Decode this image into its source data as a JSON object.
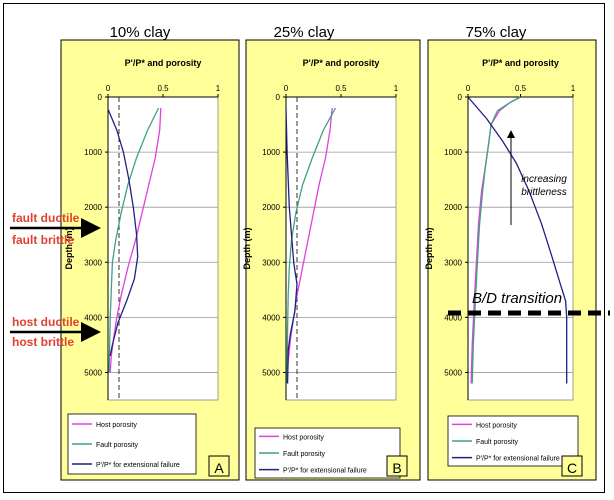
{
  "panel_titles": [
    "10% clay",
    "25% clay",
    "75% clay"
  ],
  "left_labels": {
    "fault_ductile": "fault ductile",
    "fault_brittle": "fault brittle",
    "host_ductile": "host ductile",
    "host_brittle": "host brittle"
  },
  "colors": {
    "panel_bg": "#ffff99",
    "host": "#e040e0",
    "fault": "#40a080",
    "ppstar": "#202080",
    "labels": "#e04030"
  },
  "chart_data": [
    {
      "type": "line",
      "panel_letter": "A",
      "title": "P'/P* and porosity",
      "ylabel": "Depth (m)",
      "xlim": [
        0,
        1
      ],
      "ylim": [
        0,
        5500
      ],
      "xticks": [
        0,
        0.5,
        1
      ],
      "xtick_labels": [
        "0",
        "0.5",
        "1"
      ],
      "yticks": [
        0,
        1000,
        2000,
        3000,
        4000,
        5000
      ],
      "ytick_labels": [
        "0",
        "1000",
        "2000",
        "3000",
        "4000",
        "5000"
      ],
      "x_axis_position": "top",
      "grid": true,
      "reference_line_x": 0.1,
      "series": [
        {
          "name": "Host porosity",
          "color_key": "host",
          "points": [
            [
              0.48,
              200
            ],
            [
              0.47,
              600
            ],
            [
              0.43,
              1100
            ],
            [
              0.37,
              1600
            ],
            [
              0.31,
              2100
            ],
            [
              0.25,
              2600
            ],
            [
              0.18,
              3100
            ],
            [
              0.12,
              3600
            ],
            [
              0.08,
              4000
            ],
            [
              0.05,
              4400
            ],
            [
              0.03,
              4700
            ],
            [
              0.02,
              5000
            ]
          ]
        },
        {
          "name": "Fault porosity",
          "color_key": "fault",
          "points": [
            [
              0.46,
              200
            ],
            [
              0.36,
              600
            ],
            [
              0.26,
              1100
            ],
            [
              0.18,
              1600
            ],
            [
              0.12,
              2100
            ],
            [
              0.07,
              2600
            ],
            [
              0.04,
              3000
            ],
            [
              0.03,
              3500
            ],
            [
              0.02,
              4000
            ],
            [
              0.015,
              4500
            ],
            [
              0.01,
              5000
            ]
          ]
        },
        {
          "name": "P'/P* for extensional failure",
          "color_key": "ppstar",
          "points": [
            [
              0.0,
              220
            ],
            [
              0.08,
              600
            ],
            [
              0.14,
              1000
            ],
            [
              0.19,
              1500
            ],
            [
              0.23,
              2000
            ],
            [
              0.26,
              2500
            ],
            [
              0.27,
              2900
            ],
            [
              0.24,
              3300
            ],
            [
              0.17,
              3700
            ],
            [
              0.09,
              4100
            ],
            [
              0.04,
              4500
            ],
            [
              0.02,
              4700
            ]
          ]
        }
      ],
      "legend_location": "bottom"
    },
    {
      "type": "line",
      "panel_letter": "B",
      "title": "P'/P* and porosity",
      "ylabel": "Depth (m)",
      "xlim": [
        0,
        1
      ],
      "ylim": [
        0,
        5500
      ],
      "xticks": [
        0,
        0.5,
        1
      ],
      "xtick_labels": [
        "0",
        "0.5",
        "1"
      ],
      "yticks": [
        0,
        1000,
        2000,
        3000,
        4000,
        5000
      ],
      "ytick_labels": [
        "0",
        "1000",
        "2000",
        "3000",
        "4000",
        "5000"
      ],
      "x_axis_position": "top",
      "grid": true,
      "reference_line_x": 0.1,
      "series": [
        {
          "name": "Host porosity",
          "color_key": "host",
          "points": [
            [
              0.42,
              200
            ],
            [
              0.4,
              600
            ],
            [
              0.36,
              1100
            ],
            [
              0.3,
              1600
            ],
            [
              0.25,
              2100
            ],
            [
              0.2,
              2600
            ],
            [
              0.15,
              3100
            ],
            [
              0.1,
              3600
            ],
            [
              0.07,
              4000
            ],
            [
              0.04,
              4400
            ],
            [
              0.02,
              4800
            ],
            [
              0.01,
              5200
            ]
          ]
        },
        {
          "name": "Fault porosity",
          "color_key": "fault",
          "points": [
            [
              0.45,
              200
            ],
            [
              0.34,
              600
            ],
            [
              0.24,
              1100
            ],
            [
              0.15,
              1600
            ],
            [
              0.09,
              2100
            ],
            [
              0.05,
              2600
            ],
            [
              0.03,
              3100
            ],
            [
              0.02,
              3600
            ],
            [
              0.015,
              4200
            ],
            [
              0.01,
              5200
            ]
          ]
        },
        {
          "name": "P'/P* for extensional failure",
          "color_key": "ppstar",
          "points": [
            [
              0.0,
              200
            ],
            [
              0.01,
              1000
            ],
            [
              0.03,
              2000
            ],
            [
              0.07,
              3000
            ],
            [
              0.1,
              3400
            ],
            [
              0.08,
              3900
            ],
            [
              0.04,
              4300
            ],
            [
              0.02,
              4600
            ],
            [
              0.015,
              5200
            ]
          ]
        }
      ],
      "legend_location": "bottom"
    },
    {
      "type": "line",
      "panel_letter": "C",
      "title": "P'/P* and porosity",
      "ylabel": "Depth (m)",
      "xlim": [
        0,
        1
      ],
      "ylim": [
        0,
        5500
      ],
      "xticks": [
        0,
        0.5,
        1
      ],
      "xtick_labels": [
        "0",
        "0.5",
        "1"
      ],
      "yticks": [
        0,
        1000,
        2000,
        3000,
        4000,
        5000
      ],
      "ytick_labels": [
        "0",
        "1000",
        "2000",
        "3000",
        "4000",
        "5000"
      ],
      "x_axis_position": "top",
      "grid": true,
      "series": [
        {
          "name": "Host porosity",
          "color_key": "host",
          "points": [
            [
              0.5,
              0
            ],
            [
              0.4,
              100
            ],
            [
              0.3,
              250
            ],
            [
              0.22,
              500
            ],
            [
              0.2,
              800
            ],
            [
              0.17,
              1200
            ],
            [
              0.13,
              1700
            ],
            [
              0.1,
              2300
            ],
            [
              0.08,
              3000
            ],
            [
              0.06,
              3700
            ],
            [
              0.04,
              4500
            ],
            [
              0.03,
              5200
            ]
          ]
        },
        {
          "name": "Fault porosity",
          "color_key": "fault",
          "points": [
            [
              0.5,
              0
            ],
            [
              0.4,
              100
            ],
            [
              0.28,
              250
            ],
            [
              0.22,
              500
            ],
            [
              0.2,
              800
            ],
            [
              0.17,
              1200
            ],
            [
              0.14,
              1700
            ],
            [
              0.11,
              2300
            ],
            [
              0.09,
              3000
            ],
            [
              0.07,
              3700
            ],
            [
              0.05,
              4500
            ],
            [
              0.04,
              5200
            ]
          ]
        },
        {
          "name": "P'/P* for extensional failure",
          "color_key": "ppstar",
          "points": [
            [
              0.0,
              0
            ],
            [
              0.18,
              400
            ],
            [
              0.33,
              800
            ],
            [
              0.46,
              1200
            ],
            [
              0.58,
              1700
            ],
            [
              0.7,
              2300
            ],
            [
              0.8,
              2900
            ],
            [
              0.88,
              3400
            ],
            [
              0.93,
              3700
            ],
            [
              0.94,
              4000
            ],
            [
              0.94,
              5200
            ]
          ]
        }
      ],
      "annotations": [
        {
          "text": "increasing brittleness",
          "italic": true
        },
        {
          "text": "B/D transition",
          "italic": true
        }
      ],
      "legend_location": "bottom"
    }
  ]
}
